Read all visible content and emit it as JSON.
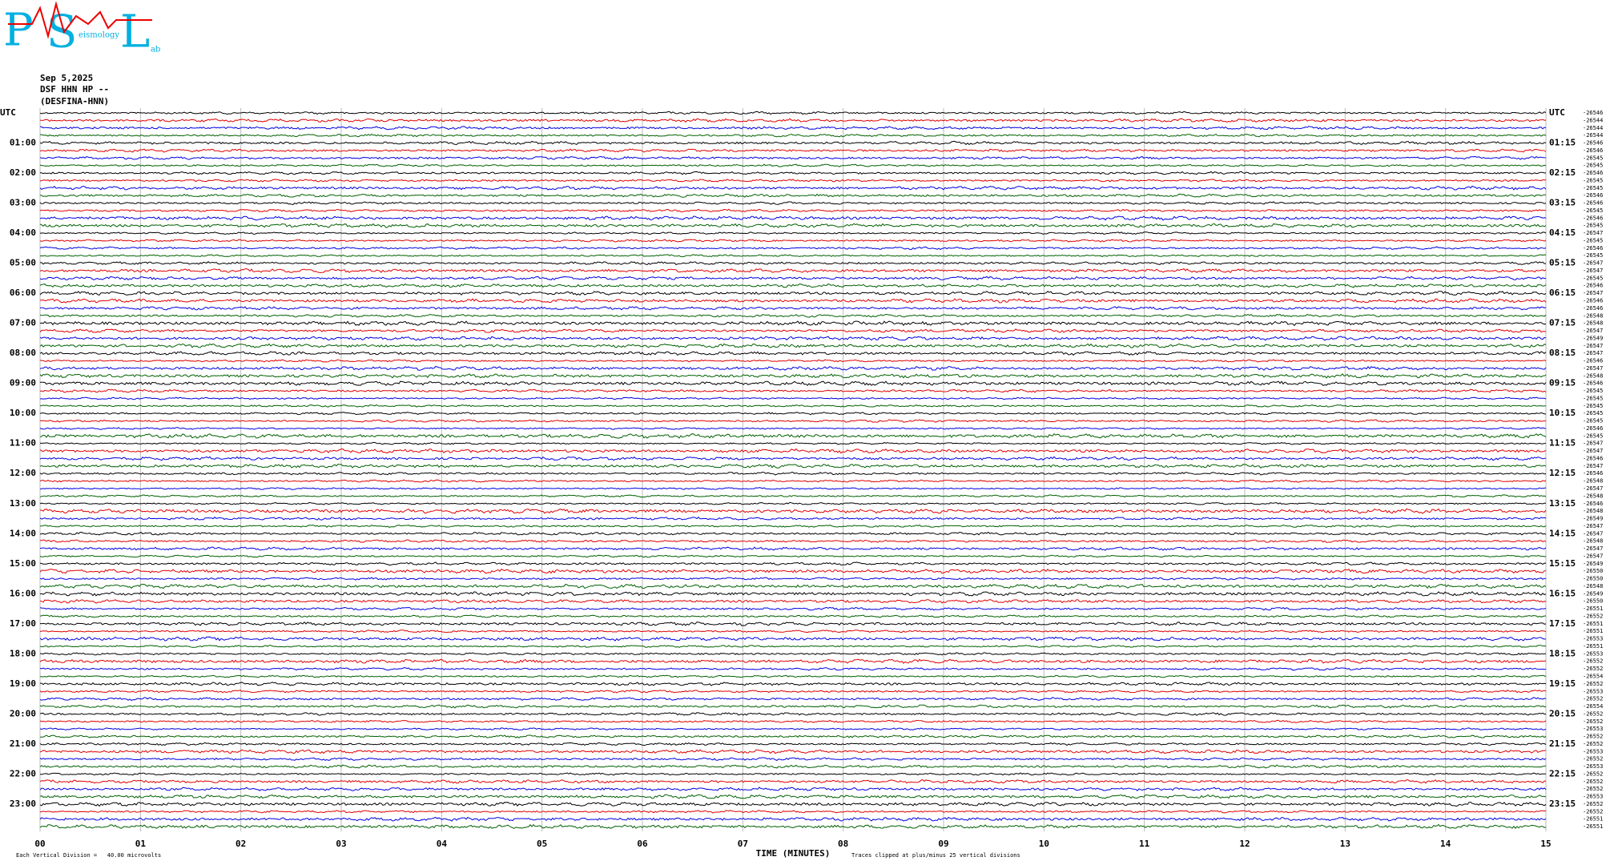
{
  "logo": {
    "p": "P",
    "s": "S",
    "l": "L",
    "word": "eismology",
    "tail": "ab"
  },
  "header": {
    "date": "Sep 5,2025",
    "station": "DSF HHN HP --",
    "site": "(DESFINA-HNN)"
  },
  "left_labels": [
    "UTC",
    "01:00",
    "02:00",
    "03:00",
    "04:00",
    "05:00",
    "06:00",
    "07:00",
    "08:00",
    "09:00",
    "10:00",
    "11:00",
    "12:00",
    "13:00",
    "14:00",
    "15:00",
    "16:00",
    "17:00",
    "18:00",
    "19:00",
    "20:00",
    "21:00",
    "22:00",
    "23:00"
  ],
  "right_labels": [
    "UTC",
    "01:15",
    "02:15",
    "03:15",
    "04:15",
    "05:15",
    "06:15",
    "07:15",
    "08:15",
    "09:15",
    "10:15",
    "11:15",
    "12:15",
    "13:15",
    "14:15",
    "15:15",
    "16:15",
    "17:15",
    "18:15",
    "19:15",
    "20:15",
    "21:15",
    "22:15",
    "23:15"
  ],
  "trace_values": [
    "-26546",
    "-26544",
    "-26544",
    "-26544",
    "-26546",
    "-26546",
    "-26545",
    "-26545",
    "-26546",
    "-26545",
    "-26545",
    "-26546",
    "-26546",
    "-26545",
    "-26546",
    "-26545",
    "-26547",
    "-26545",
    "-26546",
    "-26545",
    "-26547",
    "-26547",
    "-26545",
    "-26546",
    "-26547",
    "-26546",
    "-26546",
    "-26548",
    "-26548",
    "-26547",
    "-26549",
    "-26547",
    "-26547",
    "-26546",
    "-26547",
    "-26548",
    "-26546",
    "-26545",
    "-26545",
    "-26545",
    "-26545",
    "-26545",
    "-26546",
    "-26545",
    "-26547",
    "-26547",
    "-26546",
    "-26547",
    "-26546",
    "-26548",
    "-26547",
    "-26548",
    "-26546",
    "-26548",
    "-26549",
    "-26547",
    "-26547",
    "-26548",
    "-26547",
    "-26547",
    "-26549",
    "-26550",
    "-26550",
    "-26548",
    "-26549",
    "-26550",
    "-26551",
    "-26552",
    "-26551",
    "-26551",
    "-26553",
    "-26551",
    "-26553",
    "-26552",
    "-26552",
    "-26554",
    "-26552",
    "-26553",
    "-26552",
    "-26554",
    "-26552",
    "-26552",
    "-26553",
    "-26552",
    "-26552",
    "-26553",
    "-26552",
    "-26553",
    "-26552",
    "-26552",
    "-26552",
    "-26553",
    "-26552",
    "-26552",
    "-26551",
    "-26551"
  ],
  "trace_colors": [
    "#000000",
    "#e00000",
    "#0000e0",
    "#006000"
  ],
  "x_axis": {
    "ticks": [
      "00",
      "01",
      "02",
      "03",
      "04",
      "05",
      "06",
      "07",
      "08",
      "09",
      "10",
      "11",
      "12",
      "13",
      "14",
      "15"
    ],
    "label": "TIME (MINUTES)"
  },
  "footer": {
    "scale": "Each Vertical Division =   40.00 microvolts",
    "clip": "Traces clipped at plus/minus 25 vertical divisions"
  }
}
